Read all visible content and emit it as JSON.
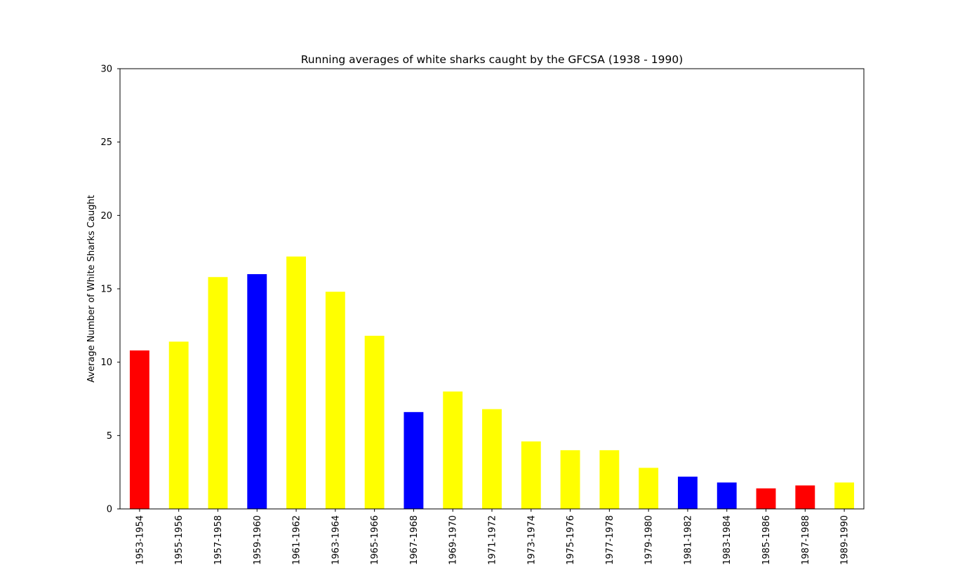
{
  "chart_data": {
    "type": "bar",
    "title": "Running averages of white sharks caught by the GFCSA (1938 - 1990)",
    "xlabel": "",
    "ylabel": "Average Number of White Sharks Caught",
    "ylim": [
      0,
      30
    ],
    "yticks": [
      0,
      5,
      10,
      15,
      20,
      25,
      30
    ],
    "grid": false,
    "legend": "none",
    "categories": [
      "1953-1954",
      "1955-1956",
      "1957-1958",
      "1959-1960",
      "1961-1962",
      "1963-1964",
      "1965-1966",
      "1967-1968",
      "1969-1970",
      "1971-1972",
      "1973-1974",
      "1975-1976",
      "1977-1978",
      "1979-1980",
      "1981-1982",
      "1983-1984",
      "1985-1986",
      "1987-1988",
      "1989-1990"
    ],
    "values": [
      10.8,
      11.4,
      15.8,
      16.0,
      17.2,
      14.8,
      11.8,
      6.6,
      8.0,
      6.8,
      4.6,
      4.0,
      4.0,
      2.8,
      2.2,
      1.8,
      1.4,
      1.6,
      1.8
    ],
    "bar_colors": [
      "#ff0000",
      "#ffff00",
      "#ffff00",
      "#0000ff",
      "#ffff00",
      "#ffff00",
      "#ffff00",
      "#0000ff",
      "#ffff00",
      "#ffff00",
      "#ffff00",
      "#ffff00",
      "#ffff00",
      "#ffff00",
      "#0000ff",
      "#0000ff",
      "#ff0000",
      "#ff0000",
      "#ffff00"
    ]
  }
}
